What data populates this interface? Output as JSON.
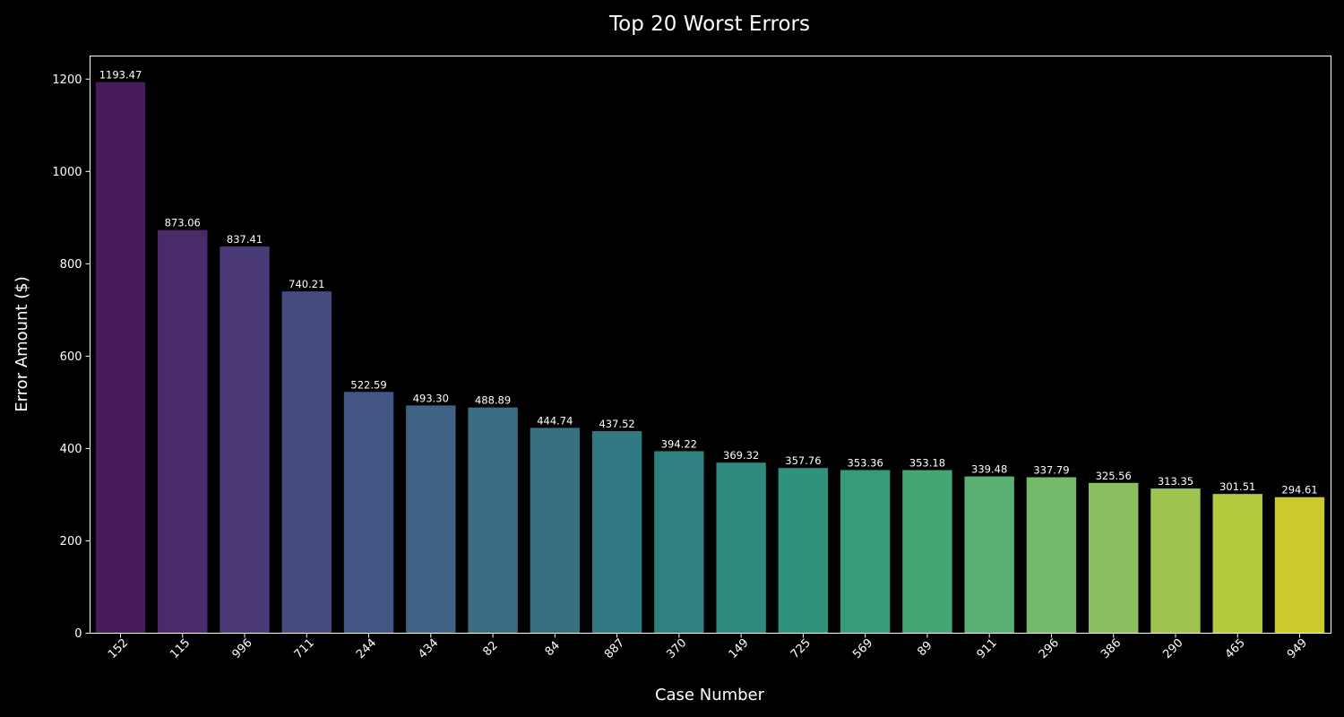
{
  "chart_data": {
    "type": "bar",
    "title": "Top 20 Worst Errors",
    "xlabel": "Case Number",
    "ylabel": "Error Amount ($)",
    "ylim": [
      0,
      1250
    ],
    "yticks": [
      0,
      200,
      400,
      600,
      800,
      1000,
      1200
    ],
    "grid": false,
    "categories": [
      "152",
      "115",
      "996",
      "711",
      "244",
      "434",
      "82",
      "84",
      "887",
      "370",
      "149",
      "725",
      "569",
      "89",
      "911",
      "296",
      "386",
      "290",
      "465",
      "949"
    ],
    "values": [
      1193.47,
      873.06,
      837.41,
      740.21,
      522.59,
      493.3,
      488.89,
      444.74,
      437.52,
      394.22,
      369.32,
      357.76,
      353.36,
      353.18,
      339.48,
      337.79,
      325.56,
      313.35,
      301.51,
      294.61
    ],
    "value_labels": [
      "1193.47",
      "873.06",
      "837.41",
      "740.21",
      "522.59",
      "493.30",
      "488.89",
      "444.74",
      "437.52",
      "394.22",
      "369.32",
      "357.76",
      "353.36",
      "353.18",
      "339.48",
      "337.79",
      "325.56",
      "313.35",
      "301.51",
      "294.61"
    ],
    "colors": [
      "#481c5a",
      "#4a2a6a",
      "#4b3977",
      "#474b80",
      "#435785",
      "#3f6384",
      "#3b6c84",
      "#376f81",
      "#317983",
      "#2f8181",
      "#2c8a7f",
      "#2f937b",
      "#369b78",
      "#45a574",
      "#5ab073",
      "#73bb6a",
      "#89bf5e",
      "#9fc34f",
      "#b5c93d",
      "#cbcb2f"
    ],
    "background": "#000000",
    "foreground": "#ffffff"
  }
}
